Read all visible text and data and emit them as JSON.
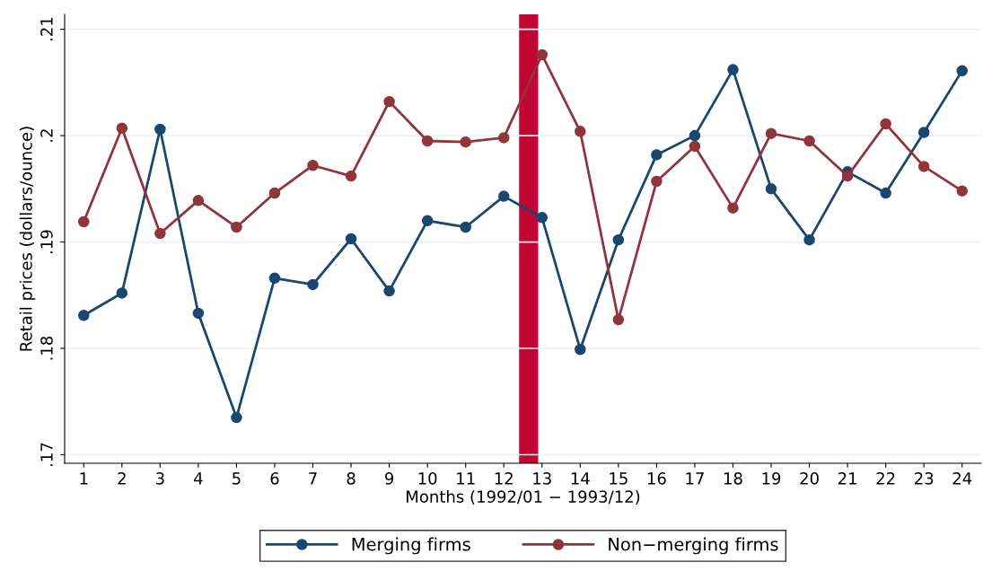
{
  "chart_data": {
    "type": "line",
    "xlabel": "Months (1992/01 − 1993/12)",
    "ylabel": "Retail prices (dollars/ounce)",
    "x": [
      1,
      2,
      3,
      4,
      5,
      6,
      7,
      8,
      9,
      10,
      11,
      12,
      13,
      14,
      15,
      16,
      17,
      18,
      19,
      20,
      21,
      22,
      23,
      24
    ],
    "series": [
      {
        "name": "Merging firms",
        "color": "#1a476f",
        "values": [
          0.1831,
          0.1852,
          0.2006,
          0.1833,
          0.1735,
          0.1866,
          0.186,
          0.1903,
          0.1854,
          0.192,
          0.1914,
          0.1943,
          0.1923,
          0.1799,
          0.1902,
          0.1982,
          0.2,
          0.2062,
          0.195,
          0.1902,
          0.1966,
          0.1946,
          0.2003,
          0.2061
        ]
      },
      {
        "name": "Non−merging firms",
        "color": "#90353b",
        "values": [
          0.1919,
          0.2007,
          0.1908,
          0.1939,
          0.1914,
          0.1946,
          0.1972,
          0.1962,
          0.2032,
          0.1995,
          0.1994,
          0.1998,
          0.2076,
          0.2004,
          0.1827,
          0.1957,
          0.199,
          0.1932,
          0.2002,
          0.1995,
          0.1962,
          0.2011,
          0.1971,
          0.1948
        ]
      }
    ],
    "xlim": [
      0.5,
      24.5
    ],
    "xticks": [
      1,
      2,
      3,
      4,
      5,
      6,
      7,
      8,
      9,
      10,
      11,
      12,
      13,
      14,
      15,
      16,
      17,
      18,
      19,
      20,
      21,
      22,
      23,
      24
    ],
    "ylim": [
      0.1692,
      0.2114
    ],
    "yticks": [
      {
        "value": 0.17,
        "label": ".17"
      },
      {
        "value": 0.18,
        "label": ".18"
      },
      {
        "value": 0.19,
        "label": ".19"
      },
      {
        "value": 0.2,
        "label": ".2"
      },
      {
        "value": 0.21,
        "label": ".21"
      }
    ],
    "bands": [
      {
        "axis": "x",
        "from": 12.4,
        "to": 12.9,
        "color": "#c10534"
      }
    ],
    "grid": "y",
    "legend": "bottom",
    "marker": "circle",
    "line_style": "solid"
  }
}
